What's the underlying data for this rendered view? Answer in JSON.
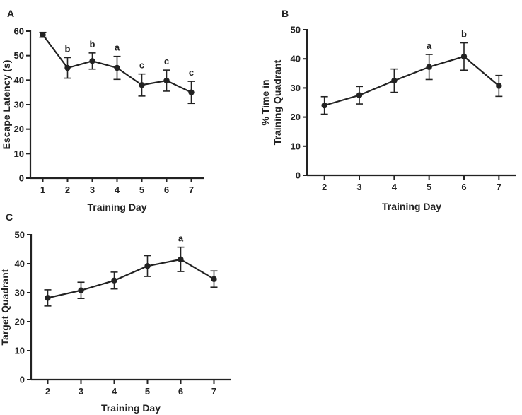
{
  "chart_data": [
    {
      "panel": "A",
      "type": "line",
      "xlabel": "Training Day",
      "ylabel": "Escape Latency (s)",
      "ylim": [
        0,
        60
      ],
      "yticks": [
        0,
        10,
        20,
        30,
        40,
        50,
        60
      ],
      "x": [
        1,
        2,
        3,
        4,
        5,
        6,
        7
      ],
      "series": [
        {
          "values": [
            58.5,
            45,
            47.8,
            45,
            38,
            39.8,
            35
          ],
          "errors": [
            1.0,
            4.2,
            3.3,
            4.7,
            4.5,
            4.3,
            4.5
          ],
          "labels": [
            "",
            "b",
            "b",
            "a",
            "c",
            "c",
            "c"
          ]
        }
      ]
    },
    {
      "panel": "B",
      "type": "line",
      "xlabel": "Training Day",
      "ylabel": [
        "% Time in",
        "Training Quadrant"
      ],
      "ylim": [
        0,
        50
      ],
      "yticks": [
        0,
        10,
        20,
        30,
        40,
        50
      ],
      "x": [
        2,
        3,
        4,
        5,
        6,
        7
      ],
      "series": [
        {
          "values": [
            24,
            27.5,
            32.5,
            37.2,
            40.8,
            30.7
          ],
          "errors": [
            3.0,
            3.0,
            4.0,
            4.3,
            4.7,
            3.6
          ],
          "labels": [
            "",
            "",
            "",
            "a",
            "b",
            ""
          ]
        }
      ]
    },
    {
      "panel": "C",
      "type": "line",
      "xlabel": "Training Day",
      "ylabel": "Target Quadrant",
      "ylim": [
        0,
        50
      ],
      "yticks": [
        0,
        10,
        20,
        30,
        40,
        50
      ],
      "x": [
        2,
        3,
        4,
        5,
        6,
        7
      ],
      "series": [
        {
          "values": [
            28.2,
            30.8,
            34.2,
            39.2,
            41.5,
            34.7
          ],
          "errors": [
            2.8,
            2.8,
            2.9,
            3.6,
            4.2,
            2.8
          ],
          "labels": [
            "",
            "",
            "",
            "",
            "a",
            ""
          ]
        }
      ]
    }
  ]
}
